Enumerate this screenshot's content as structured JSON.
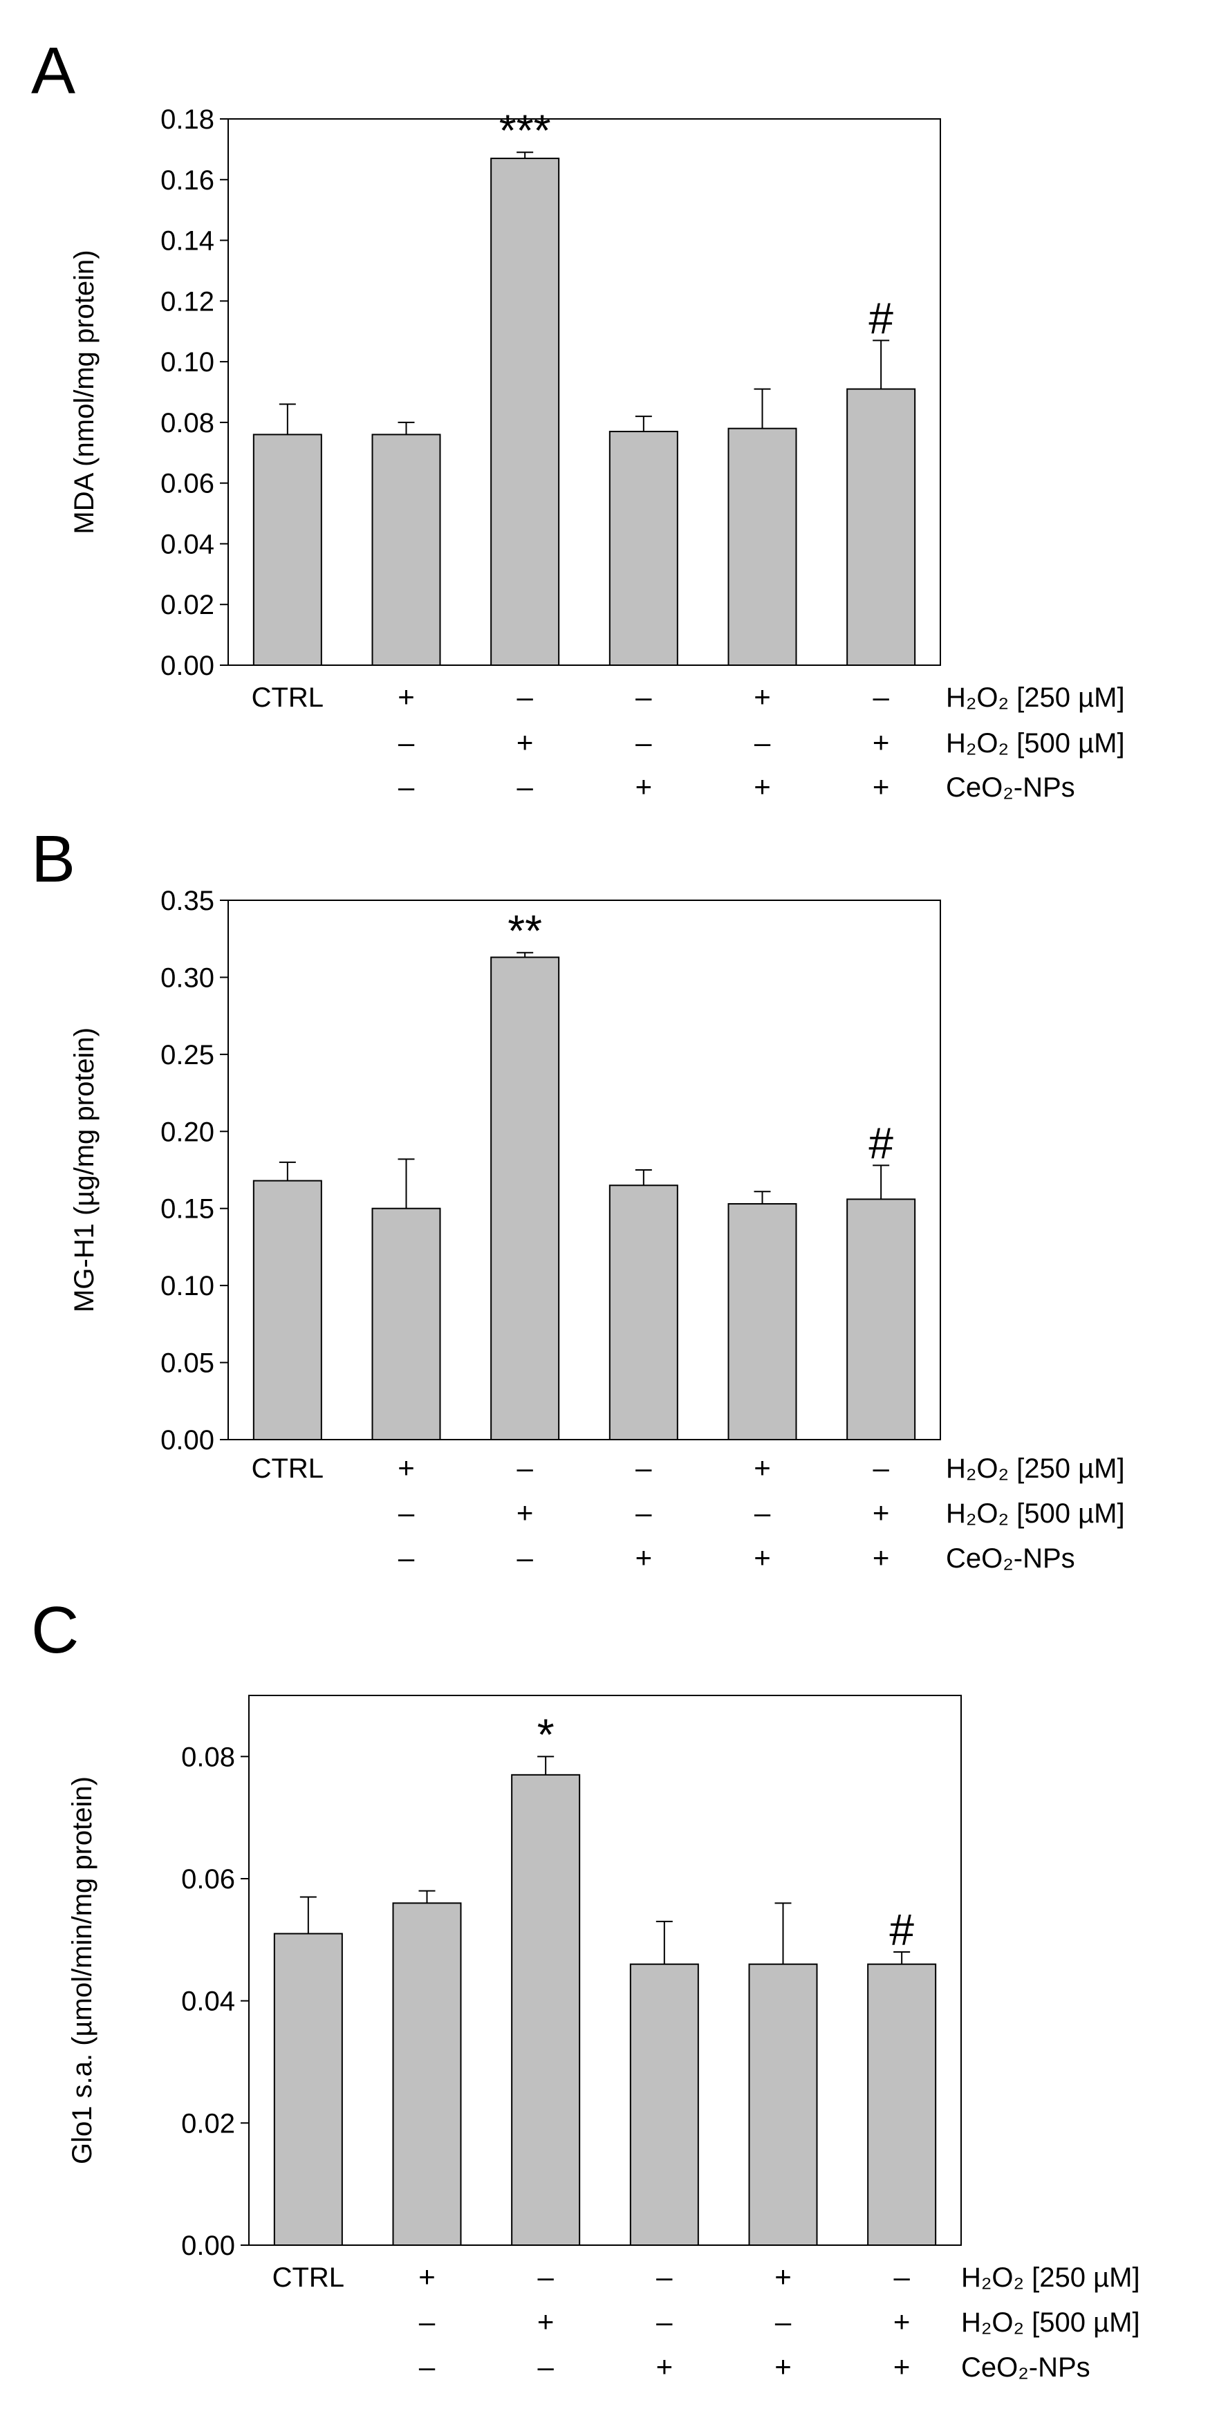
{
  "colors": {
    "bar": "#c0c0c0",
    "frame": "#000000",
    "background": "#ffffff"
  },
  "chart_data": [
    {
      "type": "bar",
      "panel_label": "A",
      "ylabel": "MDA (nmol/mg protein)",
      "ylim": [
        0,
        0.18
      ],
      "yticks": [
        "0.00",
        "0.02",
        "0.04",
        "0.06",
        "0.08",
        "0.10",
        "0.12",
        "0.14",
        "0.16",
        "0.18"
      ],
      "values": [
        0.076,
        0.076,
        0.167,
        0.077,
        0.078,
        0.091
      ],
      "errors": [
        0.01,
        0.004,
        0.002,
        0.005,
        0.013,
        0.016
      ],
      "annotations": [
        "",
        "",
        "***",
        "",
        "",
        "#"
      ],
      "condition_rows": [
        {
          "label": "H₂O₂ [250 µM]",
          "marks": [
            "CTRL",
            "+",
            "–",
            "–",
            "+",
            "–"
          ]
        },
        {
          "label": "H₂O₂ [500 µM]",
          "marks": [
            "",
            "–",
            "+",
            "–",
            "–",
            "+"
          ]
        },
        {
          "label": "CeO₂-NPs",
          "marks": [
            "",
            "–",
            "–",
            "+",
            "+",
            "+"
          ]
        }
      ]
    },
    {
      "type": "bar",
      "panel_label": "B",
      "ylabel": "MG-H1 (µg/mg protein)",
      "ylim": [
        0,
        0.35
      ],
      "yticks": [
        "0.00",
        "0.05",
        "0.10",
        "0.15",
        "0.20",
        "0.25",
        "0.30",
        "0.35"
      ],
      "values": [
        0.168,
        0.15,
        0.313,
        0.165,
        0.153,
        0.156
      ],
      "errors": [
        0.012,
        0.032,
        0.003,
        0.01,
        0.008,
        0.022
      ],
      "annotations": [
        "",
        "",
        "**",
        "",
        "",
        "#"
      ],
      "condition_rows": [
        {
          "label": "H₂O₂ [250 µM]",
          "marks": [
            "CTRL",
            "+",
            "–",
            "–",
            "+",
            "–"
          ]
        },
        {
          "label": "H₂O₂ [500 µM]",
          "marks": [
            "",
            "–",
            "+",
            "–",
            "–",
            "+"
          ]
        },
        {
          "label": "CeO₂-NPs",
          "marks": [
            "",
            "–",
            "–",
            "+",
            "+",
            "+"
          ]
        }
      ]
    },
    {
      "type": "bar",
      "panel_label": "C",
      "ylabel": "Glo1 s.a. (µmol/min/mg protein)",
      "ylim": [
        0,
        0.09
      ],
      "yticks": [
        "0.00",
        "0.02",
        "0.04",
        "0.06",
        "0.08"
      ],
      "values": [
        0.051,
        0.056,
        0.077,
        0.046,
        0.046,
        0.046
      ],
      "errors": [
        0.006,
        0.002,
        0.003,
        0.007,
        0.01,
        0.002
      ],
      "annotations": [
        "",
        "",
        "*",
        "",
        "",
        "#"
      ],
      "condition_rows": [
        {
          "label": "H₂O₂ [250 µM]",
          "marks": [
            "CTRL",
            "+",
            "–",
            "–",
            "+",
            "–"
          ]
        },
        {
          "label": "H₂O₂ [500 µM]",
          "marks": [
            "",
            "–",
            "+",
            "–",
            "–",
            "+"
          ]
        },
        {
          "label": "CeO₂-NPs",
          "marks": [
            "",
            "–",
            "–",
            "+",
            "+",
            "+"
          ]
        }
      ]
    }
  ]
}
